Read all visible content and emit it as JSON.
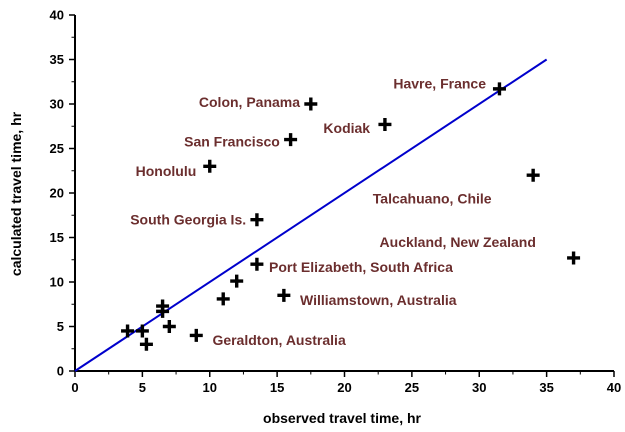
{
  "chart_data": {
    "type": "scatter",
    "title": "",
    "xlabel": "observed travel time, hr",
    "ylabel": "calculated travel time, hr",
    "xlim": [
      0,
      40
    ],
    "ylim": [
      0,
      40
    ],
    "x_ticks": [
      "0",
      "5",
      "10",
      "15",
      "20",
      "25",
      "30",
      "35",
      "40"
    ],
    "y_ticks": [
      "0",
      "5",
      "10",
      "15",
      "20",
      "25",
      "30",
      "35",
      "40"
    ],
    "grid": false,
    "marker": "cross",
    "marker_color": "#000000",
    "label_color": "#6b2e2e",
    "reference_line": {
      "color": "#0000cc",
      "points": [
        [
          0,
          0
        ],
        [
          35,
          35
        ]
      ]
    },
    "points": [
      {
        "x": 3.9,
        "y": 4.5
      },
      {
        "x": 5.0,
        "y": 4.5
      },
      {
        "x": 5.3,
        "y": 3.0
      },
      {
        "x": 6.5,
        "y": 7.3
      },
      {
        "x": 6.5,
        "y": 6.7
      },
      {
        "x": 7.0,
        "y": 5.0
      },
      {
        "x": 9.0,
        "y": 4.0
      },
      {
        "x": 11.0,
        "y": 8.1
      },
      {
        "x": 12.0,
        "y": 10.1
      },
      {
        "x": 13.5,
        "y": 12.0
      },
      {
        "x": 15.5,
        "y": 8.5
      },
      {
        "x": 13.5,
        "y": 17.0
      },
      {
        "x": 10.0,
        "y": 23.0
      },
      {
        "x": 16.0,
        "y": 26.0
      },
      {
        "x": 17.5,
        "y": 30.0
      },
      {
        "x": 23.0,
        "y": 27.7
      },
      {
        "x": 31.5,
        "y": 31.7
      },
      {
        "x": 34.0,
        "y": 22.0
      },
      {
        "x": 37.0,
        "y": 12.7
      }
    ],
    "annotations": [
      {
        "text": "Havre, France",
        "x": 30.5,
        "y": 32.3,
        "anchor": "end"
      },
      {
        "text": "Colon, Panama",
        "x": 16.7,
        "y": 30.2,
        "anchor": "end"
      },
      {
        "text": "Kodiak",
        "x": 21.9,
        "y": 27.3,
        "anchor": "end"
      },
      {
        "text": "San Francisco",
        "x": 15.2,
        "y": 25.8,
        "anchor": "end"
      },
      {
        "text": "Honolulu",
        "x": 9.0,
        "y": 22.5,
        "anchor": "end"
      },
      {
        "text": "Talcahuano, Chile",
        "x": 22.1,
        "y": 19.4,
        "anchor": "start"
      },
      {
        "text": "South Georgia Is.",
        "x": 12.7,
        "y": 17.0,
        "anchor": "end"
      },
      {
        "text": "Auckland, New Zealand",
        "x": 22.6,
        "y": 14.5,
        "anchor": "start"
      },
      {
        "text": "Port Elizabeth, South Africa",
        "x": 14.4,
        "y": 11.7,
        "anchor": "start"
      },
      {
        "text": "Williamstown, Australia",
        "x": 16.7,
        "y": 8.0,
        "anchor": "start"
      },
      {
        "text": "Geraldton, Australia",
        "x": 10.2,
        "y": 3.5,
        "anchor": "start"
      }
    ]
  }
}
